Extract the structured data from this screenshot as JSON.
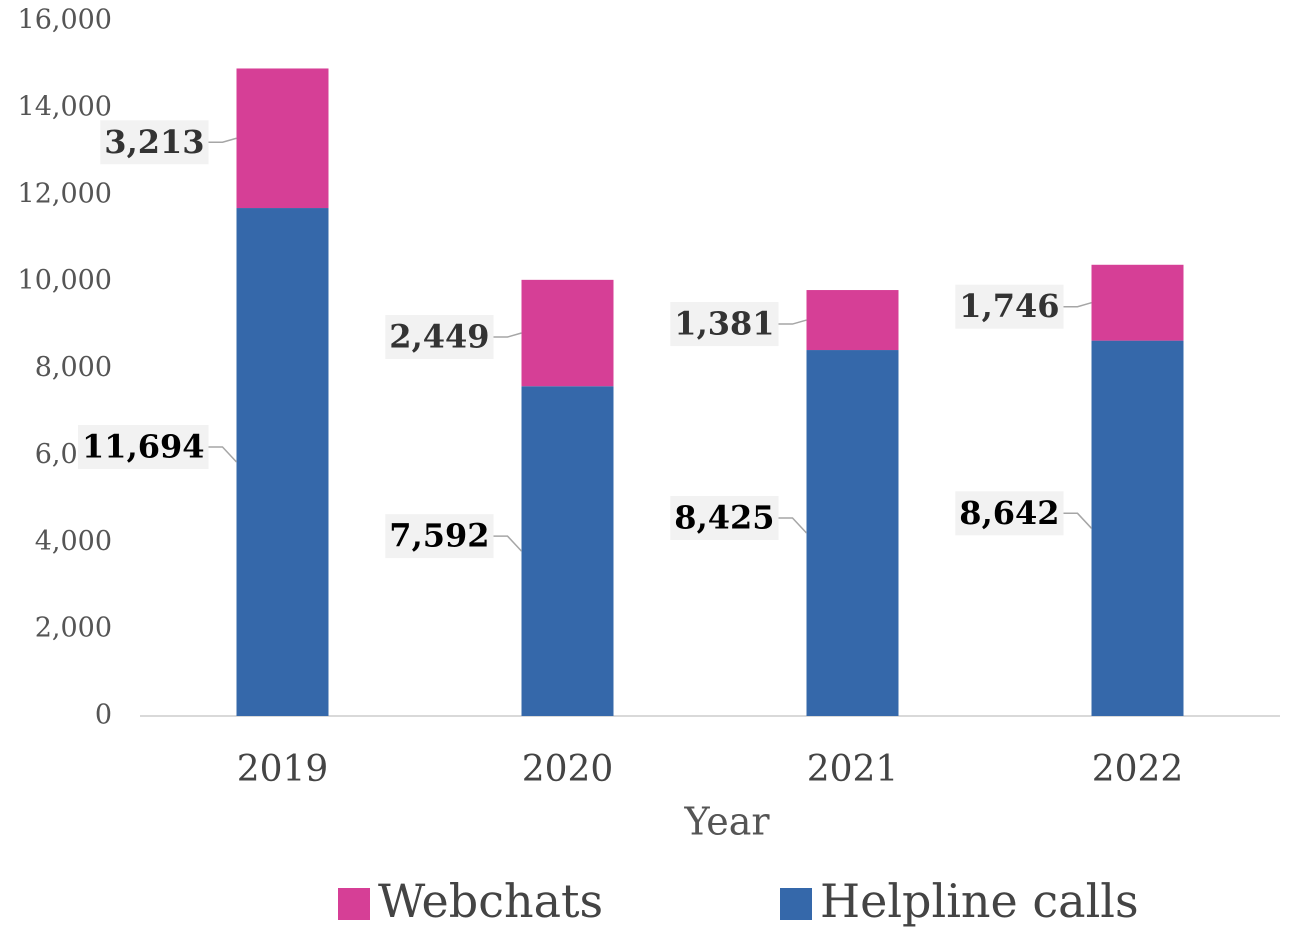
{
  "chart_data": {
    "type": "stacked_bar",
    "x_label": "Year",
    "categories": [
      "2019",
      "2020",
      "2021",
      "2022"
    ],
    "series": [
      {
        "name": "Helpline calls",
        "color": "#3568aa",
        "values": [
          11694,
          7592,
          8425,
          8642
        ],
        "value_labels": [
          "11,694",
          "7,592",
          "8,425",
          "8,642"
        ]
      },
      {
        "name": "Webchats",
        "color": "#d63f96",
        "values": [
          3213,
          2449,
          1381,
          1746
        ],
        "value_labels": [
          "3,213",
          "2,449",
          "1,381",
          "1,746"
        ]
      }
    ],
    "ylim": [
      0,
      16000
    ],
    "yticks": [
      0,
      {
        "value": 2000,
        "label": "2,000"
      },
      {
        "value": 4000,
        "label": "4,000"
      },
      {
        "value": 6000,
        "label": "6,000"
      },
      {
        "value": 8000,
        "label": "8,000"
      },
      {
        "value": 10000,
        "label": "10,000"
      },
      {
        "value": 12000,
        "label": "12,000"
      },
      {
        "value": 14000,
        "label": "14,000"
      },
      {
        "value": 16000,
        "label": "16,000"
      }
    ],
    "grid": false,
    "legend": "bottom"
  }
}
